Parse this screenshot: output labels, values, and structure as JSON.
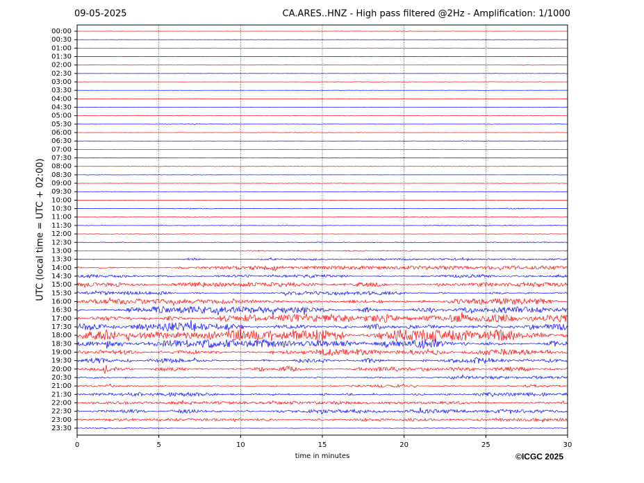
{
  "chart_data": {
    "type": "helicorder",
    "date": "09-05-2025",
    "title": "CA.ARES..HNZ - High pass filtered @2Hz - Amplification: 1/1000",
    "ylabel": "UTC (local time = UTC + 02:00)",
    "xlabel": "time in minutes",
    "copyright": "©ICGC 2025",
    "colors": [
      "#ff0000",
      "#0000ff"
    ],
    "xlim": [
      0,
      30
    ],
    "xticks": [
      0,
      5,
      10,
      15,
      20,
      25,
      30
    ],
    "grid": true,
    "rows": [
      "00:00",
      "00:30",
      "01:00",
      "01:30",
      "02:00",
      "02:30",
      "03:00",
      "03:30",
      "04:00",
      "04:30",
      "05:00",
      "05:30",
      "06:00",
      "06:30",
      "07:00",
      "07:30",
      "08:00",
      "08:30",
      "09:00",
      "09:30",
      "10:00",
      "10:30",
      "11:00",
      "11:30",
      "12:00",
      "12:30",
      "13:00",
      "13:30",
      "14:00",
      "14:30",
      "15:00",
      "15:30",
      "16:00",
      "16:30",
      "17:00",
      "17:30",
      "18:00",
      "18:30",
      "19:00",
      "19:30",
      "20:00",
      "20:30",
      "21:00",
      "21:30",
      "22:00",
      "22:30",
      "23:00",
      "23:30"
    ],
    "amplitudes": [
      0.02,
      0.02,
      0.02,
      0.02,
      0.02,
      0.02,
      0.02,
      0.02,
      0.02,
      0.02,
      0.02,
      0.03,
      0.02,
      0.02,
      0.02,
      0.02,
      0.02,
      0.02,
      0.02,
      0.02,
      0.02,
      0.05,
      0.04,
      0.04,
      0.03,
      0.05,
      0.06,
      0.1,
      0.2,
      0.2,
      0.25,
      0.2,
      0.3,
      0.35,
      0.4,
      0.5,
      0.6,
      0.5,
      0.35,
      0.3,
      0.3,
      0.15,
      0.15,
      0.2,
      0.15,
      0.2,
      0.15,
      0.05
    ]
  }
}
